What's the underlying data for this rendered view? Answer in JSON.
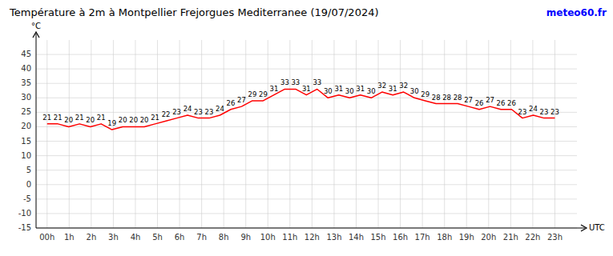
{
  "chart_data": {
    "type": "line",
    "title": "Température à 2m à Montpellier Frejorgues Mediterranee (19/07/2024)",
    "y_label": "°C",
    "x_label": "UTC",
    "annotations": [
      {
        "text": "meteo60.fr",
        "color": "#0000ff"
      }
    ],
    "x": [
      0,
      0.489362,
      0.978723,
      1.468085,
      1.957447,
      2.446809,
      2.93617,
      3.425532,
      3.914894,
      4.404255,
      4.893617,
      5.382979,
      5.87234,
      6.361702,
      6.851064,
      7.340426,
      7.829787,
      8.319149,
      8.808511,
      9.297872,
      9.787234,
      10.276596,
      10.765957,
      11.255319,
      11.744681,
      12.234043,
      12.723404,
      13.212766,
      13.702128,
      14.191489,
      14.680851,
      15.170213,
      15.659574,
      16.148936,
      16.638298,
      17.12766,
      17.617021,
      18.106383,
      18.595745,
      19.085106,
      19.574468,
      20.06383,
      20.553191,
      21.042553,
      21.531915,
      22.021277,
      22.510638,
      23
    ],
    "series": [
      {
        "color": "#ff0000",
        "values": [
          21,
          21,
          20,
          21,
          20,
          21,
          19,
          20,
          20,
          20,
          21,
          22,
          23,
          24,
          23,
          23,
          24,
          26,
          27,
          29,
          29,
          31,
          33,
          33,
          31,
          33,
          30,
          31,
          30,
          31,
          30,
          32,
          31,
          32,
          30,
          29,
          28,
          28,
          28,
          27,
          26,
          27,
          26,
          26,
          23,
          24,
          23,
          23
        ]
      }
    ],
    "xlim": [
      -0.5,
      24.0
    ],
    "xticks": [
      {
        "value": 0,
        "label": "00h"
      },
      {
        "value": 1,
        "label": "1h"
      },
      {
        "value": 2,
        "label": "2h"
      },
      {
        "value": 3,
        "label": "3h"
      },
      {
        "value": 4,
        "label": "4h"
      },
      {
        "value": 5,
        "label": "5h"
      },
      {
        "value": 6,
        "label": "6h"
      },
      {
        "value": 7,
        "label": "7h"
      },
      {
        "value": 8,
        "label": "8h"
      },
      {
        "value": 9,
        "label": "9h"
      },
      {
        "value": 10,
        "label": "10h"
      },
      {
        "value": 11,
        "label": "11h"
      },
      {
        "value": 12,
        "label": "12h"
      },
      {
        "value": 13,
        "label": "13h"
      },
      {
        "value": 14,
        "label": "14h"
      },
      {
        "value": 15,
        "label": "15h"
      },
      {
        "value": 16,
        "label": "16h"
      },
      {
        "value": 17,
        "label": "17h"
      },
      {
        "value": 18,
        "label": "18h"
      },
      {
        "value": 19,
        "label": "19h"
      },
      {
        "value": 20,
        "label": "20h"
      },
      {
        "value": 21,
        "label": "21h"
      },
      {
        "value": 22,
        "label": "22h"
      },
      {
        "value": 23,
        "label": "23h"
      }
    ],
    "ylim": [
      -15,
      50
    ],
    "yticks": [
      -15,
      -10,
      -5,
      0,
      5,
      10,
      15,
      20,
      25,
      30,
      35,
      40,
      45
    ],
    "grid": true,
    "data_labels": true
  }
}
